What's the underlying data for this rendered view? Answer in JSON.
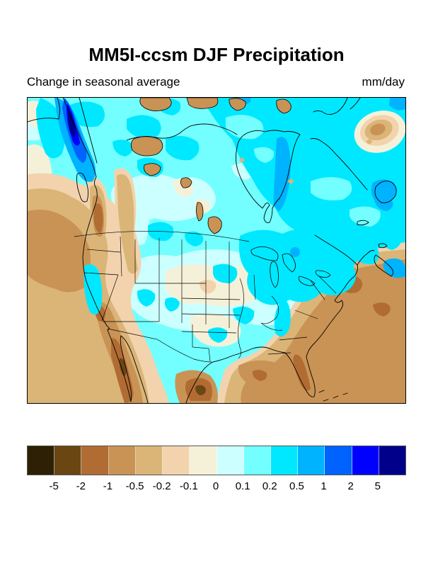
{
  "header": {
    "title": "MM5I-ccsm DJF Precipitation",
    "subtitle_left": "Change in seasonal average",
    "units": "mm/day"
  },
  "colorbar": {
    "tick_labels": [
      "-5",
      "-2",
      "-1",
      "-0.5",
      "-0.2",
      "-0.1",
      "0",
      "0.1",
      "0.2",
      "0.5",
      "1",
      "2",
      "5"
    ],
    "colors": [
      "#2e2004",
      "#6a4613",
      "#b16c33",
      "#c99355",
      "#dab577",
      "#f2d3ad",
      "#f5f1d9",
      "#ccffff",
      "#73ffff",
      "#00e8ff",
      "#00b3ff",
      "#0062ff",
      "#0000ff",
      "#00008b"
    ],
    "orientation": "horizontal"
  },
  "chart_data": {
    "type": "heatmap",
    "subtype": "filled-contour-geographic-map",
    "title": "MM5I-ccsm DJF Precipitation",
    "subtitle": "Change in seasonal average",
    "units": "mm/day",
    "region": "North America (Canada, United States, Mexico and adjacent oceans)",
    "contour_levels": [
      -5,
      -2,
      -1,
      -0.5,
      -0.2,
      -0.1,
      0,
      0.1,
      0.2,
      0.5,
      1,
      2,
      5
    ],
    "palette_hex": [
      "#2e2004",
      "#6a4613",
      "#b16c33",
      "#c99355",
      "#dab577",
      "#f2d3ad",
      "#f5f1d9",
      "#ccffff",
      "#73ffff",
      "#00e8ff",
      "#00b3ff",
      "#0062ff",
      "#0000ff",
      "#00008b"
    ],
    "legend_position": "bottom",
    "notable_features": [
      {
        "area": "SE Alaska / BC coast panhandle",
        "value_mm_day": "+2 to >+5",
        "color": "blue to navy"
      },
      {
        "area": "Canada, Hudson Bay, Quebec, Labrador",
        "value_mm_day": "+0.1 to +1",
        "color": "cyan"
      },
      {
        "area": "East of Hudson Bay and Newfoundland",
        "value_mm_day": "+0.5 to +1",
        "color": "sky blue"
      },
      {
        "area": "Great Lakes / Ohio Valley / Northeast US",
        "value_mm_day": "+0.2 to +0.5",
        "color": "cyan"
      },
      {
        "area": "Northern Great Plains",
        "value_mm_day": "-0.1 to +0.1",
        "color": "cream / pale cyan"
      },
      {
        "area": "Pacific off California and Southwest US",
        "value_mm_day": "-0.2 to -1",
        "color": "tan"
      },
      {
        "area": "Baja California and Mexico",
        "value_mm_day": "-1 to -2",
        "color": "brown"
      },
      {
        "area": "Southeast US, Florida and western Atlantic",
        "value_mm_day": "-0.2 to -2",
        "color": "tan / brown streaks"
      },
      {
        "area": "Southern Greenland tip (upper right)",
        "value_mm_day": "-0.2 to -0.5",
        "color": "tan"
      },
      {
        "area": "Arctic islands (top edge)",
        "value_mm_day": "-0.5 to -1",
        "color": "tan islands"
      }
    ]
  }
}
